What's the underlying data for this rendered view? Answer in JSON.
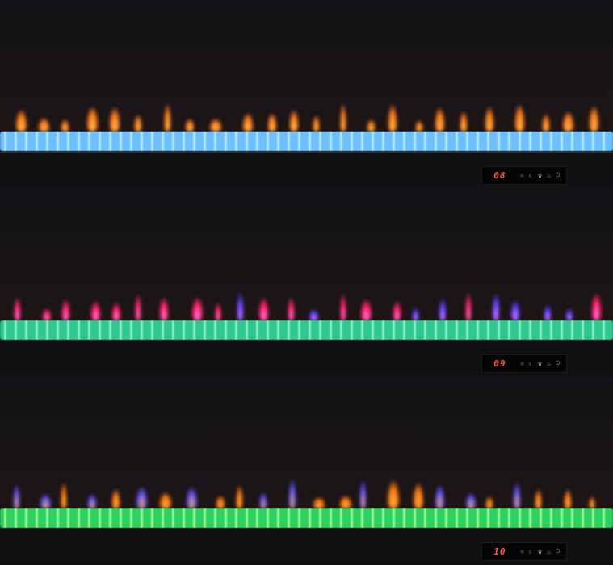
{
  "panels": [
    {
      "display": "08",
      "flame_color": "#ff7a20",
      "flame_core": "#ffc040",
      "bed_color": "#6cc0ff",
      "bed_accent": "#b0e4ff"
    },
    {
      "display": "09",
      "flame_color": "#ff2060",
      "flame_core": "#ff80ff",
      "accent_flame": "#5040ff",
      "bed_color": "#30c890",
      "bed_accent": "#80f0c0"
    },
    {
      "display": "10",
      "flame_color": "#ff7a10",
      "flame_core": "#ffb040",
      "accent_flame": "#6050ff",
      "bed_color": "#30d060",
      "bed_accent": "#90ff90"
    }
  ],
  "control_icons": [
    "brightness-icon",
    "moon-icon",
    "flame-icon",
    "heater-icon",
    "power-icon"
  ]
}
